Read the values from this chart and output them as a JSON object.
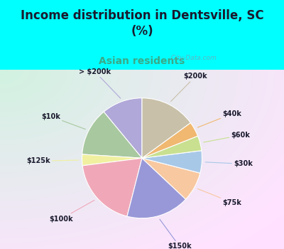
{
  "title": "Income distribution in Dentsville, SC\n(%)",
  "subtitle": "Asian residents",
  "subtitle_color": "#3aaa88",
  "title_color": "#1a1a2e",
  "background_fig": "#00ffff",
  "labels": [
    "> $200k",
    "$10k",
    "$125k",
    "$100k",
    "$150k",
    "$75k",
    "$30k",
    "$60k",
    "$40k",
    "$200k"
  ],
  "sizes": [
    11,
    13,
    3,
    19,
    17,
    8,
    6,
    4,
    4,
    15
  ],
  "colors": [
    "#b0a8d8",
    "#a8c8a0",
    "#f0f0a0",
    "#f0a8b8",
    "#9898d8",
    "#f8c8a0",
    "#a8c8e8",
    "#c8e090",
    "#f0b870",
    "#c8c0a8"
  ],
  "label_color": "#1a1a2e",
  "startangle": 90,
  "watermark": "  City-Data.com"
}
